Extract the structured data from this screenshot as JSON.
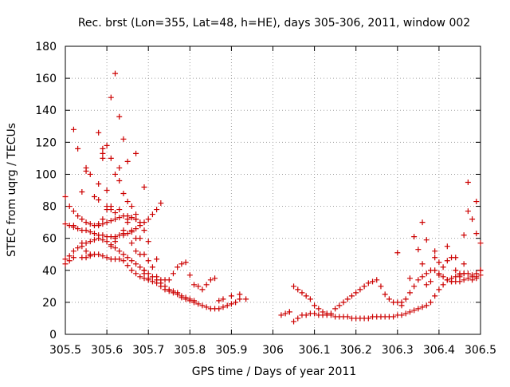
{
  "chart_data": {
    "type": "scatter",
    "title": "Rec. brst (Lon=355, Lat=48, h=HE), days 305-306, 2011, window 002",
    "xlabel": "GPS time / Days of year 2011",
    "ylabel": "STEC from uqrg / TECUs",
    "xlim": [
      305.5,
      306.5
    ],
    "ylim": [
      0,
      180
    ],
    "xticks": [
      "305.5",
      "305.6",
      "305.7",
      "305.8",
      "305.9",
      "306",
      "306.1",
      "306.2",
      "306.3",
      "306.4",
      "306.5"
    ],
    "yticks": [
      "0",
      "20",
      "40",
      "60",
      "80",
      "100",
      "120",
      "140",
      "160",
      "180"
    ],
    "grid": true,
    "marker": "plus",
    "color": "#cc0000",
    "series": [
      {
        "x": [
          305.5,
          305.51,
          305.52,
          305.54,
          305.55,
          305.56,
          305.57,
          305.58,
          305.59,
          305.6,
          305.61,
          305.62,
          305.63,
          305.64,
          305.65,
          305.66,
          305.67,
          305.68,
          305.69,
          305.7,
          305.71,
          305.72,
          305.73,
          305.74,
          305.75,
          305.76,
          305.77,
          305.78,
          305.79,
          305.8,
          305.81,
          305.82,
          305.83,
          305.84,
          305.85,
          305.86,
          305.87,
          305.88,
          305.89,
          305.9,
          305.91,
          305.92,
          305.5,
          305.51,
          305.52,
          305.53,
          305.54,
          305.55,
          305.56,
          305.57,
          305.58,
          305.59,
          305.6,
          305.61,
          305.62,
          305.63,
          305.64,
          305.65,
          305.66,
          305.67,
          305.68,
          305.69,
          305.7,
          305.71,
          305.72,
          305.73,
          305.74,
          305.75,
          305.76,
          305.77,
          305.78,
          305.79,
          305.8,
          305.81,
          305.5,
          305.51,
          305.52,
          305.53,
          305.54,
          305.55,
          305.56,
          305.57,
          305.58,
          305.59,
          305.6,
          305.61,
          305.62,
          305.63,
          305.64,
          305.65,
          305.66,
          305.67,
          305.68,
          305.69,
          305.7,
          305.71,
          305.72,
          305.73,
          305.5,
          305.51,
          305.52,
          305.53,
          305.54,
          305.55,
          305.56,
          305.57,
          305.58,
          305.59,
          305.6,
          305.61,
          305.62,
          305.63,
          305.64,
          305.65,
          305.66,
          305.67,
          305.68,
          305.52,
          305.53,
          305.55,
          305.56,
          305.57,
          305.58,
          305.59,
          305.6,
          305.61,
          305.62,
          305.63,
          305.64,
          305.65,
          305.66,
          305.67,
          305.69,
          305.7,
          305.72,
          305.54,
          305.55,
          305.56,
          305.58,
          305.59,
          305.6,
          305.61,
          305.62,
          305.63,
          305.64,
          305.66,
          305.67,
          305.69,
          305.52,
          305.54,
          305.55,
          305.58,
          305.59,
          305.6,
          305.61,
          305.62,
          305.63,
          305.65,
          305.67,
          305.69,
          305.58,
          305.59,
          305.6,
          305.61,
          305.62,
          305.63,
          305.64,
          305.65,
          305.66,
          305.67,
          305.68,
          305.69,
          305.7,
          305.61,
          305.62,
          305.64,
          305.65,
          305.66,
          305.67,
          305.68,
          305.69,
          305.7,
          305.71,
          305.72,
          305.73,
          305.74,
          305.75,
          305.76,
          305.77,
          305.78,
          305.79,
          305.8,
          305.81,
          305.82,
          305.83,
          305.84,
          305.85,
          305.86,
          305.87,
          305.88,
          305.9,
          305.92,
          305.935,
          306.02,
          306.03,
          306.04,
          306.05,
          306.06,
          306.07,
          306.08,
          306.09,
          306.1,
          306.11,
          306.12,
          306.13,
          306.14,
          306.15,
          306.16,
          306.17,
          306.18,
          306.19,
          306.2,
          306.21,
          306.22,
          306.23,
          306.24,
          306.25,
          306.26,
          306.27,
          306.28,
          306.29,
          306.3,
          306.31,
          306.32,
          306.33,
          306.34,
          306.35,
          306.36,
          306.37,
          306.38,
          306.39,
          306.4,
          306.41,
          306.42,
          306.43,
          306.44,
          306.45,
          306.46,
          306.47,
          306.48,
          306.49,
          306.5,
          306.04,
          306.05,
          306.06,
          306.07,
          306.08,
          306.09,
          306.1,
          306.11,
          306.12,
          306.13,
          306.14,
          306.15,
          306.16,
          306.17,
          306.18,
          306.19,
          306.2,
          306.21,
          306.22,
          306.23,
          306.24,
          306.25,
          306.26,
          306.27,
          306.28,
          306.29,
          306.3,
          306.31,
          306.32,
          306.33,
          306.34,
          306.35,
          306.36,
          306.37,
          306.38,
          306.39,
          306.4,
          306.41,
          306.42,
          306.43,
          306.44,
          306.45,
          306.46,
          306.47,
          306.48,
          306.49,
          306.5,
          306.3,
          306.31,
          306.33,
          306.34,
          306.35,
          306.36,
          306.37,
          306.38,
          306.39,
          306.4,
          306.41,
          306.42,
          306.43,
          306.44,
          306.45,
          306.46,
          306.47,
          306.48,
          306.49,
          306.5,
          306.36,
          306.37,
          306.39,
          306.4,
          306.42,
          306.44,
          306.46,
          306.47,
          306.48,
          306.49,
          306.43,
          306.45,
          306.46,
          306.49,
          306.5
        ],
        "y": [
          44,
          46,
          48,
          48,
          48,
          49,
          50,
          50,
          49,
          48,
          47,
          47,
          47,
          46,
          43,
          40,
          38,
          36,
          35,
          34,
          33,
          32,
          30,
          28,
          27,
          26,
          25,
          23,
          22,
          21,
          20,
          19,
          18,
          17,
          16,
          16,
          16,
          17,
          18,
          19,
          20,
          22,
          47,
          49,
          52,
          54,
          55,
          57,
          58,
          59,
          60,
          59,
          58,
          56,
          54,
          52,
          50,
          48,
          46,
          44,
          42,
          40,
          38,
          36,
          34,
          32,
          30,
          28,
          27,
          26,
          24,
          23,
          22,
          21,
          69,
          68,
          67,
          66,
          65,
          65,
          64,
          63,
          62,
          62,
          61,
          61,
          61,
          62,
          62,
          63,
          64,
          66,
          68,
          70,
          72,
          75,
          78,
          82,
          86,
          80,
          77,
          74,
          72,
          70,
          69,
          68,
          68,
          69,
          70,
          71,
          72,
          73,
          74,
          74,
          73,
          72,
          70,
          128,
          116,
          104,
          100,
          86,
          94,
          110,
          118,
          110,
          100,
          96,
          88,
          83,
          80,
          75,
          65,
          58,
          47,
          57,
          52,
          50,
          126,
          113,
          80,
          78,
          76,
          78,
          63,
          57,
          52,
          40,
          68,
          89,
          102,
          69,
          116,
          90,
          148,
          163,
          136,
          108,
          113,
          92,
          84,
          72,
          78,
          80,
          58,
          104,
          122,
          72,
          65,
          60,
          50,
          38,
          35,
          55,
          60,
          65,
          70,
          73,
          72,
          60,
          50,
          46,
          42,
          36,
          34,
          34,
          34,
          38,
          42,
          44,
          45,
          37,
          31,
          30,
          28,
          31,
          34,
          35,
          21,
          22,
          24,
          25,
          22,
          12,
          13,
          14,
          30,
          28,
          26,
          24,
          22,
          18,
          16,
          14,
          13,
          13,
          16,
          18,
          20,
          22,
          24,
          26,
          28,
          30,
          32,
          33,
          34,
          30,
          25,
          22,
          20,
          20,
          20,
          22,
          26,
          30,
          34,
          36,
          38,
          40,
          40,
          38,
          36,
          34,
          33,
          33,
          33,
          34,
          35,
          36,
          36,
          37,
          14,
          8,
          10,
          12,
          12,
          13,
          13,
          12,
          12,
          12,
          12,
          11,
          11,
          11,
          11,
          10,
          10,
          10,
          10,
          10,
          11,
          11,
          11,
          11,
          11,
          11,
          12,
          12,
          13,
          14,
          15,
          16,
          17,
          18,
          20,
          24,
          28,
          31,
          34,
          35,
          36,
          37,
          38,
          38,
          37,
          38,
          40,
          51,
          18,
          35,
          61,
          53,
          44,
          31,
          33,
          48,
          45,
          42,
          46,
          48,
          40,
          36,
          62,
          77,
          72,
          63,
          57,
          70,
          59,
          52,
          37,
          55,
          48,
          38,
          95,
          34,
          83,
          33,
          38,
          44,
          35,
          40
        ],
        "name": ""
      }
    ]
  }
}
